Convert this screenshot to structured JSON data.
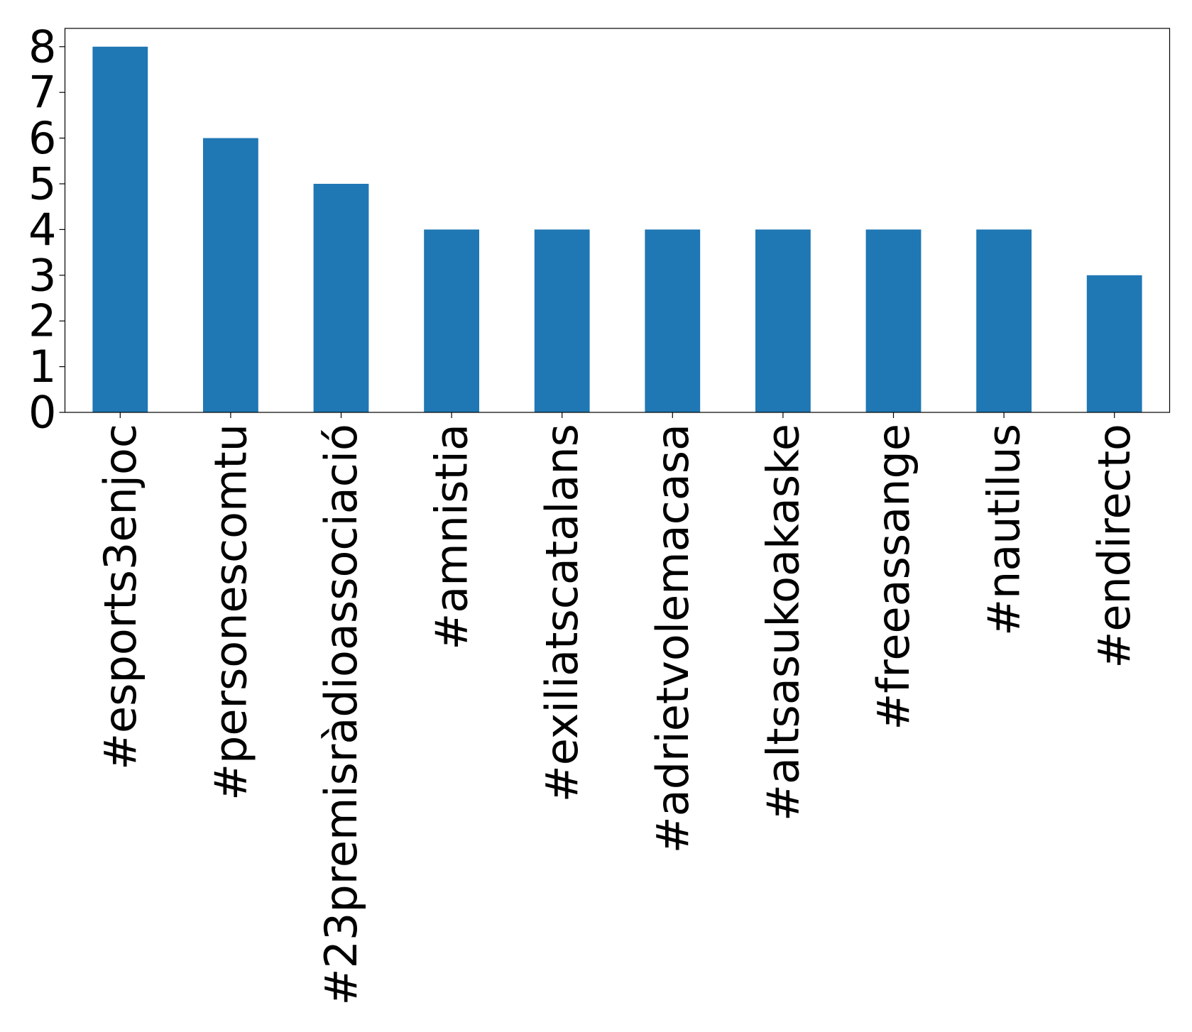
{
  "chart_data": {
    "type": "bar",
    "categories": [
      "#esports3enjoc",
      "#personescomtu",
      "#23premisràdioassociació",
      "#amnistia",
      "#exiliatscatalans",
      "#adrietvolemacasa",
      "#altsasukoakaske",
      "#freeassange",
      "#nautilus",
      "#endirecto"
    ],
    "values": [
      8,
      6,
      5,
      4,
      4,
      4,
      4,
      4,
      4,
      3
    ],
    "color": "#1f77b4",
    "ylim": [
      0,
      8.4
    ],
    "yticks": [
      0,
      1,
      2,
      3,
      4,
      5,
      6,
      7,
      8
    ],
    "grid": false
  }
}
